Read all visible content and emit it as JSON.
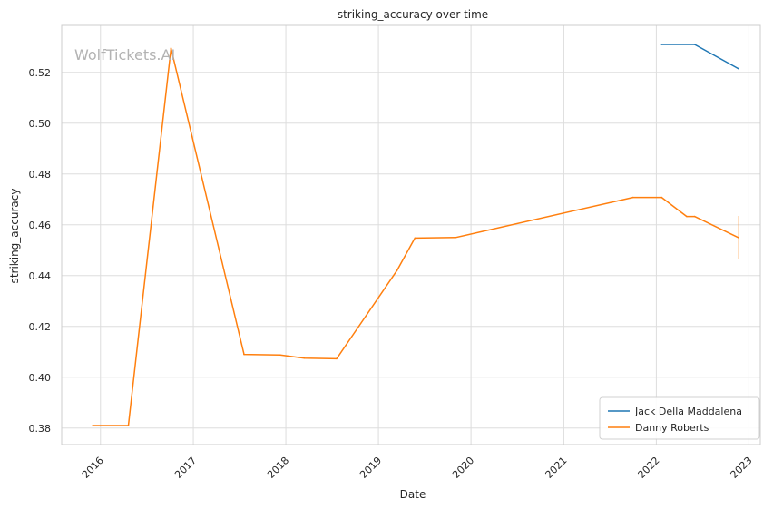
{
  "chart_data": {
    "type": "line",
    "title": "striking_accuracy over time",
    "xlabel": "Date",
    "ylabel": "striking_accuracy",
    "watermark": "WolfTickets.AI",
    "xlim": [
      "2015-08-01",
      "2023-02-15"
    ],
    "ylim": [
      0.3735,
      0.5385
    ],
    "x_ticks": [
      {
        "date": "2016-01-01",
        "label": "2016"
      },
      {
        "date": "2017-01-01",
        "label": "2017"
      },
      {
        "date": "2018-01-01",
        "label": "2018"
      },
      {
        "date": "2019-01-01",
        "label": "2019"
      },
      {
        "date": "2020-01-01",
        "label": "2020"
      },
      {
        "date": "2021-01-01",
        "label": "2021"
      },
      {
        "date": "2022-01-01",
        "label": "2022"
      },
      {
        "date": "2023-01-01",
        "label": "2023"
      }
    ],
    "y_ticks": [
      {
        "value": 0.38,
        "label": "0.38"
      },
      {
        "value": 0.4,
        "label": "0.40"
      },
      {
        "value": 0.42,
        "label": "0.42"
      },
      {
        "value": 0.44,
        "label": "0.44"
      },
      {
        "value": 0.46,
        "label": "0.46"
      },
      {
        "value": 0.48,
        "label": "0.48"
      },
      {
        "value": 0.5,
        "label": "0.50"
      },
      {
        "value": 0.52,
        "label": "0.52"
      }
    ],
    "grid": true,
    "legend_position": "bottom-right",
    "series": [
      {
        "name": "Jack Della Maddalena",
        "color": "#1f77b4",
        "points": [
          {
            "x": "2022-01-22",
            "y": 0.531
          },
          {
            "x": "2022-06-01",
            "y": 0.531
          },
          {
            "x": "2022-11-20",
            "y": 0.5215
          }
        ]
      },
      {
        "name": "Danny Roberts",
        "color": "#ff7f0e",
        "points": [
          {
            "x": "2015-12-01",
            "y": 0.381
          },
          {
            "x": "2016-04-20",
            "y": 0.381
          },
          {
            "x": "2016-10-05",
            "y": 0.5295
          },
          {
            "x": "2017-07-20",
            "y": 0.409
          },
          {
            "x": "2017-12-10",
            "y": 0.4088
          },
          {
            "x": "2018-03-15",
            "y": 0.4075
          },
          {
            "x": "2018-07-20",
            "y": 0.4073
          },
          {
            "x": "2019-03-15",
            "y": 0.442
          },
          {
            "x": "2019-05-25",
            "y": 0.4548
          },
          {
            "x": "2019-11-01",
            "y": 0.455
          },
          {
            "x": "2021-10-01",
            "y": 0.4708
          },
          {
            "x": "2022-01-22",
            "y": 0.4708
          },
          {
            "x": "2022-05-01",
            "y": 0.4633
          },
          {
            "x": "2022-06-01",
            "y": 0.4633
          },
          {
            "x": "2022-11-20",
            "y": 0.455
          }
        ]
      }
    ],
    "error_band": {
      "series": "Danny Roberts",
      "x": "2022-11-20",
      "low": 0.4465,
      "high": 0.4635
    }
  }
}
